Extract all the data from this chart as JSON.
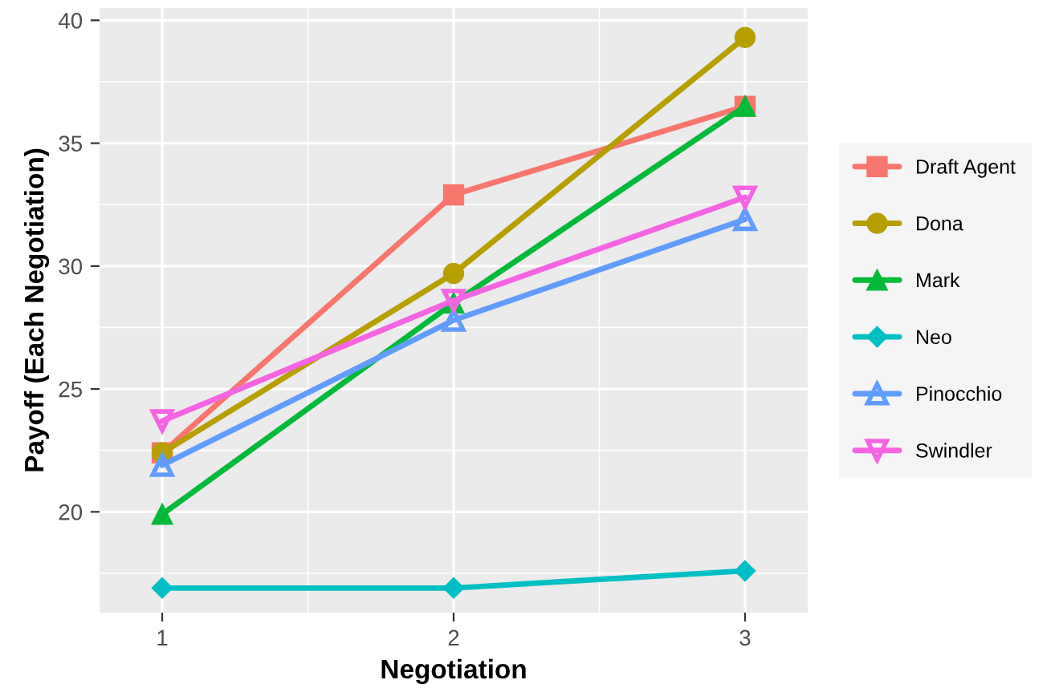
{
  "chart_data": {
    "type": "line",
    "xlabel": "Negotiation",
    "ylabel": "Payoff (Each Negotiation)",
    "x": [
      1,
      2,
      3
    ],
    "xlim": [
      0.785,
      3.215
    ],
    "xticks": [
      1,
      2,
      3
    ],
    "ylim": [
      15.9,
      40.5
    ],
    "yticks": [
      20,
      25,
      30,
      35,
      40
    ],
    "grid": true,
    "legend": "right",
    "line_style": "solid",
    "series": [
      {
        "name": "Draft Agent",
        "color": "#f8766d",
        "marker": "square",
        "values": [
          22.4,
          32.9,
          36.5
        ]
      },
      {
        "name": "Dona",
        "color": "#b79f00",
        "marker": "circle",
        "values": [
          22.4,
          29.7,
          39.3
        ]
      },
      {
        "name": "Mark",
        "color": "#00ba38",
        "marker": "triangle",
        "values": [
          19.9,
          28.5,
          36.5
        ]
      },
      {
        "name": "Neo",
        "color": "#00bfc4",
        "marker": "diamond",
        "values": [
          16.9,
          16.9,
          17.6
        ]
      },
      {
        "name": "Pinocchio",
        "color": "#619cff",
        "marker": "triangle-open",
        "values": [
          21.9,
          27.8,
          31.9
        ]
      },
      {
        "name": "Swindler",
        "color": "#f564e3",
        "marker": "triangle-down-open",
        "values": [
          23.7,
          28.6,
          32.8
        ]
      }
    ]
  }
}
